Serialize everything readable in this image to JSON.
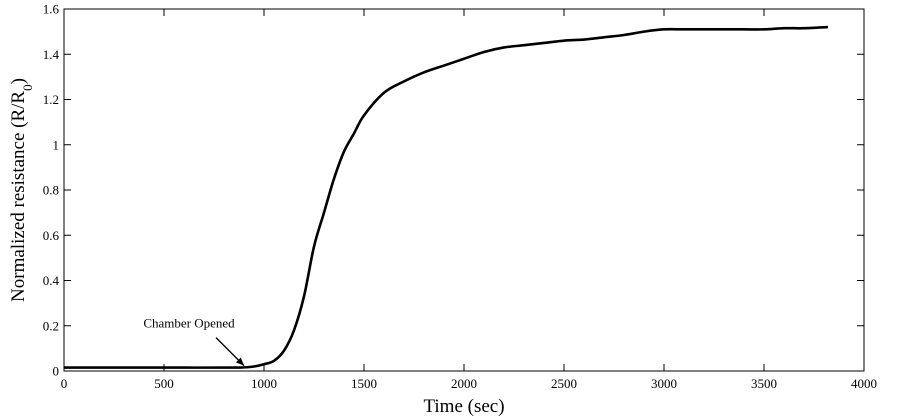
{
  "chart_data": {
    "type": "line",
    "xlabel": "Time (sec)",
    "ylabel_main": "Normalized resistance (R/R",
    "ylabel_sub": "0",
    "ylabel_close": ")",
    "xlim": [
      0,
      4000
    ],
    "ylim": [
      0,
      1.6
    ],
    "xticks": [
      0,
      500,
      1000,
      1500,
      2000,
      2500,
      3000,
      3500,
      4000
    ],
    "yticks": [
      0,
      0.2,
      0.4,
      0.6,
      0.8,
      1,
      1.2,
      1.4,
      1.6
    ],
    "xtick_labels": [
      "0",
      "500",
      "1000",
      "1500",
      "2000",
      "2500",
      "3000",
      "3500",
      "4000"
    ],
    "ytick_labels": [
      "0",
      "0.2",
      "0.4",
      "0.6",
      "0.8",
      "1",
      "1.2",
      "1.4",
      "1.6"
    ],
    "grid": false,
    "line_color": "#000000",
    "series": [
      {
        "x": [
          0,
          300,
          600,
          850,
          900,
          950,
          1000,
          1050,
          1100,
          1150,
          1200,
          1250,
          1300,
          1350,
          1400,
          1450,
          1500,
          1600,
          1700,
          1800,
          1900,
          2000,
          2100,
          2200,
          2300,
          2400,
          2500,
          2600,
          2700,
          2800,
          2900,
          3000,
          3100,
          3200,
          3300,
          3400,
          3500,
          3600,
          3700,
          3820
        ],
        "y": [
          0.015,
          0.015,
          0.015,
          0.015,
          0.016,
          0.02,
          0.03,
          0.045,
          0.09,
          0.18,
          0.33,
          0.55,
          0.7,
          0.85,
          0.97,
          1.05,
          1.13,
          1.23,
          1.28,
          1.32,
          1.35,
          1.38,
          1.41,
          1.43,
          1.44,
          1.45,
          1.46,
          1.465,
          1.475,
          1.485,
          1.5,
          1.51,
          1.51,
          1.51,
          1.51,
          1.51,
          1.51,
          1.515,
          1.515,
          1.52
        ]
      }
    ],
    "annotation": {
      "text": "Chamber Opened",
      "x": 900,
      "y": 0.015
    }
  }
}
